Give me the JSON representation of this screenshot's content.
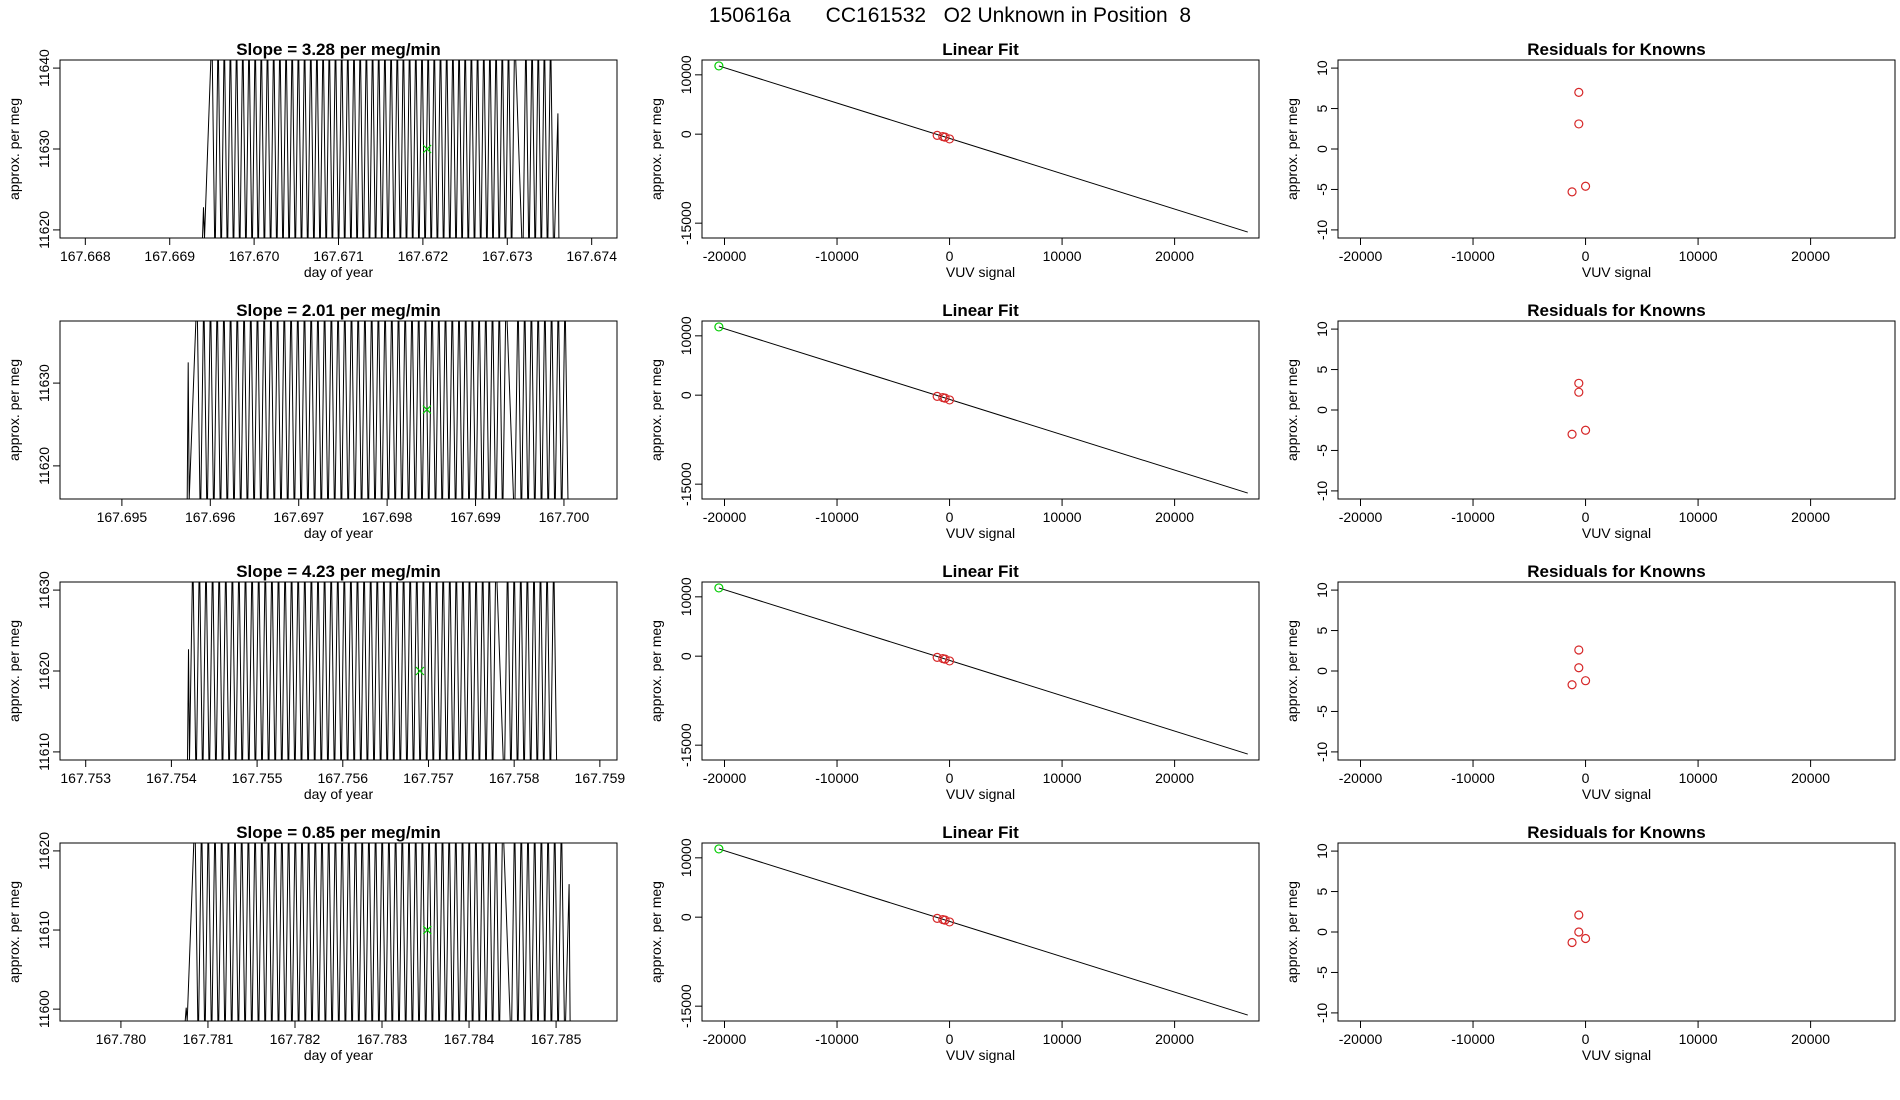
{
  "page_title": "150616a      CC161532   O2 Unknown in Position  8",
  "colors": {
    "axis": "#000000",
    "trace": "#000000",
    "unknown_marker": "#00cc00",
    "known_marker": "#d62728"
  },
  "chart_data": [
    {
      "type": "line",
      "panel": "time-series",
      "row": 1,
      "title": "Slope =  3.28  per meg/min",
      "xlabel": "day of year",
      "ylabel": "approx. per meg",
      "xlim": [
        167.6677,
        167.6743
      ],
      "ylim": [
        11619,
        11641
      ],
      "xticks": [
        "167.668",
        "167.669",
        "167.670",
        "167.671",
        "167.672",
        "167.673",
        "167.674"
      ],
      "yticks": [
        "11620",
        "11630",
        "11640"
      ],
      "x": [
        167.6694,
        167.6736
      ],
      "y": [
        11622.8,
        11634.4
      ],
      "oscillation": {
        "x_start": 167.6695,
        "x_end": 167.67355,
        "gap": [
          167.67312,
          167.67318
        ],
        "count": 110
      },
      "unknown_point": {
        "x": 167.67205,
        "y": 11630
      }
    },
    {
      "type": "scatter",
      "panel": "linear-fit",
      "row": 1,
      "title": "Linear Fit",
      "xlabel": "VUV signal",
      "ylabel": "approx. per meg",
      "xlim": [
        -22000,
        27500
      ],
      "ylim": [
        -17500,
        12500
      ],
      "xticks": [
        "-20000",
        "-10000",
        "0",
        "10000",
        "20000"
      ],
      "yticks": [
        "-15000",
        "0",
        "10000"
      ],
      "fit_line": {
        "x": [
          -20500,
          26500
        ],
        "y": [
          11500,
          -16500
        ]
      },
      "unknown_point": {
        "x": -20500,
        "y": 11500
      },
      "knowns": [
        {
          "x": -1100,
          "y": -200
        },
        {
          "x": -600,
          "y": -400
        },
        {
          "x": -400,
          "y": -500
        },
        {
          "x": 0,
          "y": -800
        }
      ]
    },
    {
      "type": "scatter",
      "panel": "residuals",
      "row": 1,
      "title": "Residuals for Knowns",
      "xlabel": "VUV signal",
      "ylabel": "approx. per meg",
      "xlim": [
        -22000,
        27500
      ],
      "ylim": [
        -11,
        11
      ],
      "xticks": [
        "-20000",
        "-10000",
        "0",
        "10000",
        "20000"
      ],
      "yticks": [
        "-10",
        "-5",
        "0",
        "5",
        "10"
      ],
      "knowns": [
        {
          "x": -1200,
          "y": -5.3
        },
        {
          "x": -600,
          "y": 7
        },
        {
          "x": -600,
          "y": 3.1
        },
        {
          "x": 0,
          "y": -4.6
        }
      ]
    },
    {
      "type": "line",
      "panel": "time-series",
      "row": 2,
      "title": "Slope =  2.01  per meg/min",
      "xlabel": "day of year",
      "ylabel": "approx. per meg",
      "xlim": [
        167.6943,
        167.7006
      ],
      "ylim": [
        11616,
        11637.5
      ],
      "xticks": [
        "167.695",
        "167.696",
        "167.697",
        "167.698",
        "167.699",
        "167.700"
      ],
      "yticks": [
        "11620",
        "11630"
      ],
      "x": [
        167.69575,
        167.70005
      ],
      "y": [
        11632.5,
        11616
      ],
      "oscillation": {
        "x_start": 167.69585,
        "x_end": 167.70005,
        "gap": [
          167.69935,
          167.69941
        ],
        "count": 110
      },
      "unknown_point": {
        "x": 167.69845,
        "y": 11626.8
      }
    },
    {
      "type": "scatter",
      "panel": "linear-fit",
      "row": 2,
      "title": "Linear Fit",
      "xlabel": "VUV signal",
      "ylabel": "approx. per meg",
      "xlim": [
        -22000,
        27500
      ],
      "ylim": [
        -17500,
        12500
      ],
      "xticks": [
        "-20000",
        "-10000",
        "0",
        "10000",
        "20000"
      ],
      "yticks": [
        "-15000",
        "0",
        "10000"
      ],
      "fit_line": {
        "x": [
          -20500,
          26500
        ],
        "y": [
          11500,
          -16500
        ]
      },
      "unknown_point": {
        "x": -20500,
        "y": 11500
      },
      "knowns": [
        {
          "x": -1100,
          "y": -200
        },
        {
          "x": -600,
          "y": -400
        },
        {
          "x": -400,
          "y": -500
        },
        {
          "x": 0,
          "y": -800
        }
      ]
    },
    {
      "type": "scatter",
      "panel": "residuals",
      "row": 2,
      "title": "Residuals for Knowns",
      "xlabel": "VUV signal",
      "ylabel": "approx. per meg",
      "xlim": [
        -22000,
        27500
      ],
      "ylim": [
        -11,
        11
      ],
      "xticks": [
        "-20000",
        "-10000",
        "0",
        "10000",
        "20000"
      ],
      "yticks": [
        "-10",
        "-5",
        "0",
        "5",
        "10"
      ],
      "knowns": [
        {
          "x": -1200,
          "y": -3
        },
        {
          "x": -600,
          "y": 3.3
        },
        {
          "x": -600,
          "y": 2.2
        },
        {
          "x": 0,
          "y": -2.5
        }
      ]
    },
    {
      "type": "line",
      "panel": "time-series",
      "row": 3,
      "title": "Slope =  4.23  per meg/min",
      "xlabel": "day of year",
      "ylabel": "approx. per meg",
      "xlim": [
        167.7527,
        167.7592
      ],
      "ylim": [
        11609,
        11631
      ],
      "xticks": [
        "167.753",
        "167.754",
        "167.755",
        "167.756",
        "167.757",
        "167.758",
        "167.759"
      ],
      "yticks": [
        "11610",
        "11620",
        "11630"
      ],
      "x": [
        167.7542,
        167.7585
      ],
      "y": [
        11622.7,
        11609
      ],
      "oscillation": {
        "x_start": 167.75425,
        "x_end": 167.7585,
        "gap": [
          167.7578,
          167.75786
        ],
        "count": 110
      },
      "unknown_point": {
        "x": 167.7569,
        "y": 11620
      }
    },
    {
      "type": "scatter",
      "panel": "linear-fit",
      "row": 3,
      "title": "Linear Fit",
      "xlabel": "VUV signal",
      "ylabel": "approx. per meg",
      "xlim": [
        -22000,
        27500
      ],
      "ylim": [
        -17500,
        12500
      ],
      "xticks": [
        "-20000",
        "-10000",
        "0",
        "10000",
        "20000"
      ],
      "yticks": [
        "-15000",
        "0",
        "10000"
      ],
      "fit_line": {
        "x": [
          -20500,
          26500
        ],
        "y": [
          11500,
          -16500
        ]
      },
      "unknown_point": {
        "x": -20500,
        "y": 11500
      },
      "knowns": [
        {
          "x": -1100,
          "y": -200
        },
        {
          "x": -600,
          "y": -400
        },
        {
          "x": -400,
          "y": -500
        },
        {
          "x": 0,
          "y": -800
        }
      ]
    },
    {
      "type": "scatter",
      "panel": "residuals",
      "row": 3,
      "title": "Residuals for Knowns",
      "xlabel": "VUV signal",
      "ylabel": "approx. per meg",
      "xlim": [
        -22000,
        27500
      ],
      "ylim": [
        -11,
        11
      ],
      "xticks": [
        "-20000",
        "-10000",
        "0",
        "10000",
        "20000"
      ],
      "yticks": [
        "-10",
        "-5",
        "0",
        "5",
        "10"
      ],
      "knowns": [
        {
          "x": -1200,
          "y": -1.7
        },
        {
          "x": -600,
          "y": 2.6
        },
        {
          "x": -600,
          "y": 0.4
        },
        {
          "x": 0,
          "y": -1.2
        }
      ]
    },
    {
      "type": "line",
      "panel": "time-series",
      "row": 4,
      "title": "Slope =  0.85  per meg/min",
      "xlabel": "day of year",
      "ylabel": "approx. per meg",
      "xlim": [
        167.7793,
        167.7857
      ],
      "ylim": [
        11598.5,
        11621
      ],
      "xticks": [
        "167.780",
        "167.781",
        "167.782",
        "167.783",
        "167.784",
        "167.785"
      ],
      "yticks": [
        "11600",
        "11610",
        "11620"
      ],
      "x": [
        167.78075,
        167.78515
      ],
      "y": [
        11600.2,
        11615.8
      ],
      "oscillation": {
        "x_start": 167.78085,
        "x_end": 167.7851,
        "gap": [
          167.78442,
          167.78448
        ],
        "count": 110
      },
      "unknown_point": {
        "x": 167.78352,
        "y": 11610
      }
    },
    {
      "type": "scatter",
      "panel": "linear-fit",
      "row": 4,
      "title": "Linear Fit",
      "xlabel": "VUV signal",
      "ylabel": "approx. per meg",
      "xlim": [
        -22000,
        27500
      ],
      "ylim": [
        -17500,
        12500
      ],
      "xticks": [
        "-20000",
        "-10000",
        "0",
        "10000",
        "20000"
      ],
      "yticks": [
        "-15000",
        "0",
        "10000"
      ],
      "fit_line": {
        "x": [
          -20500,
          26500
        ],
        "y": [
          11500,
          -16500
        ]
      },
      "unknown_point": {
        "x": -20500,
        "y": 11500
      },
      "knowns": [
        {
          "x": -1100,
          "y": -200
        },
        {
          "x": -600,
          "y": -400
        },
        {
          "x": -400,
          "y": -500
        },
        {
          "x": 0,
          "y": -800
        }
      ]
    },
    {
      "type": "scatter",
      "panel": "residuals",
      "row": 4,
      "title": "Residuals for Knowns",
      "xlabel": "VUV signal",
      "ylabel": "approx. per meg",
      "xlim": [
        -22000,
        27500
      ],
      "ylim": [
        -11,
        11
      ],
      "xticks": [
        "-20000",
        "-10000",
        "0",
        "10000",
        "20000"
      ],
      "yticks": [
        "-10",
        "-5",
        "0",
        "5",
        "10"
      ],
      "knowns": [
        {
          "x": -1200,
          "y": -1.3
        },
        {
          "x": -600,
          "y": 2.1
        },
        {
          "x": -600,
          "y": 0
        },
        {
          "x": 0,
          "y": -0.8
        }
      ]
    }
  ]
}
